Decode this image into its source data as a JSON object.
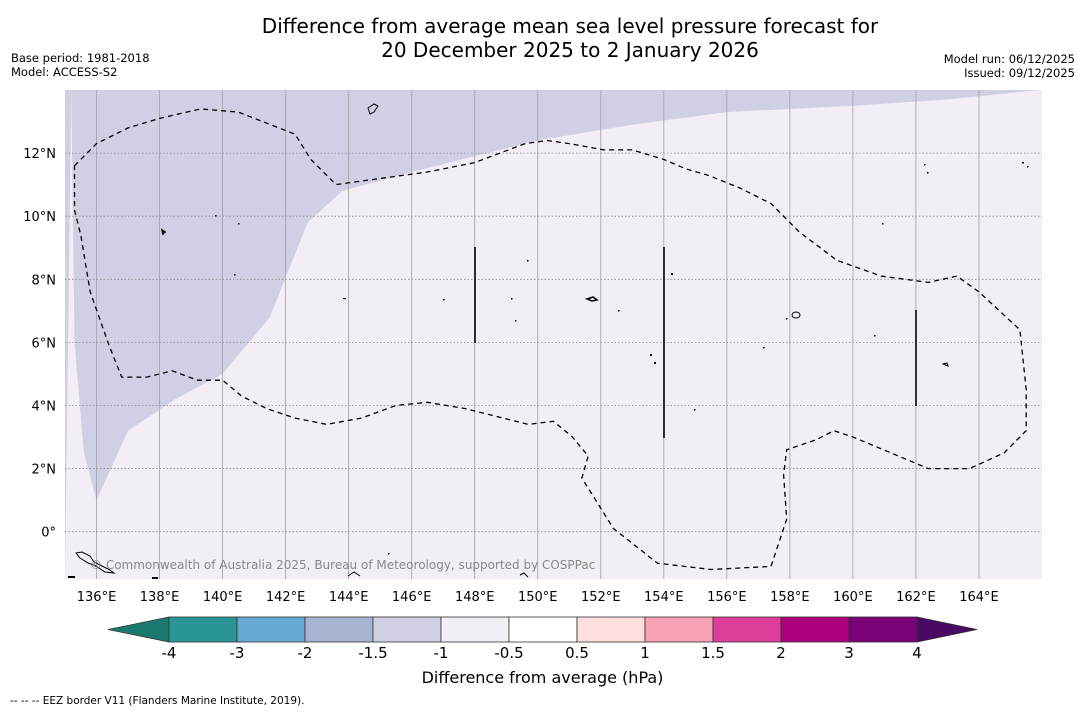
{
  "title": {
    "line1": "Difference from average mean sea level pressure forecast for",
    "line2": "20 December 2025 to 2 January 2026"
  },
  "meta": {
    "base_period": "Base period: 1981-2018",
    "model": "Model: ACCESS-S2",
    "model_run": "Model run: 06/12/2025",
    "issued": "Issued: 09/12/2025"
  },
  "map": {
    "lon_range": [
      135,
      166
    ],
    "lat_range": [
      -1.5,
      14
    ],
    "lon_ticks": [
      {
        "value": 136,
        "label": "136°E"
      },
      {
        "value": 138,
        "label": "138°E"
      },
      {
        "value": 140,
        "label": "140°E"
      },
      {
        "value": 142,
        "label": "142°E"
      },
      {
        "value": 144,
        "label": "144°E"
      },
      {
        "value": 146,
        "label": "146°E"
      },
      {
        "value": 148,
        "label": "148°E"
      },
      {
        "value": 150,
        "label": "150°E"
      },
      {
        "value": 152,
        "label": "152°E"
      },
      {
        "value": 154,
        "label": "154°E"
      },
      {
        "value": 156,
        "label": "156°E"
      },
      {
        "value": 158,
        "label": "158°E"
      },
      {
        "value": 160,
        "label": "160°E"
      },
      {
        "value": 162,
        "label": "162°E"
      },
      {
        "value": 164,
        "label": "164°E"
      }
    ],
    "lat_ticks": [
      {
        "value": 0,
        "label": "0°"
      },
      {
        "value": 2,
        "label": "2°N"
      },
      {
        "value": 4,
        "label": "4°N"
      },
      {
        "value": 6,
        "label": "6°N"
      },
      {
        "value": 8,
        "label": "8°N"
      },
      {
        "value": 10,
        "label": "10°N"
      },
      {
        "value": 12,
        "label": "12°N"
      }
    ],
    "fill_colors": {
      "neg_1_5_to_neg_1": "#d0d0e4",
      "neg_1_to_neg_0_5": "#f3edf6"
    },
    "boundary_minus1": [
      [
        135.2,
        14
      ],
      [
        135.3,
        6
      ],
      [
        135.6,
        2.5
      ],
      [
        136,
        1
      ],
      [
        137,
        3.2
      ],
      [
        138.5,
        4.2
      ],
      [
        140,
        5
      ],
      [
        141.5,
        6.8
      ],
      [
        142.7,
        9.8
      ],
      [
        143.8,
        10.8
      ],
      [
        146,
        11.4
      ],
      [
        150,
        12.4
      ],
      [
        153,
        12.9
      ],
      [
        156,
        13.3
      ],
      [
        160,
        13.5
      ],
      [
        163,
        13.7
      ],
      [
        165.9,
        14
      ]
    ],
    "eez_border": [
      [
        135.3,
        11.6
      ],
      [
        136,
        12.3
      ],
      [
        137,
        12.8
      ],
      [
        138,
        13.1
      ],
      [
        139.3,
        13.4
      ],
      [
        140.5,
        13.3
      ],
      [
        142.3,
        12.6
      ],
      [
        142.8,
        11.8
      ],
      [
        143.6,
        11.0
      ],
      [
        144.3,
        11.1
      ],
      [
        146.5,
        11.4
      ],
      [
        148.0,
        11.7
      ],
      [
        148.8,
        12.0
      ],
      [
        149.6,
        12.3
      ],
      [
        150.3,
        12.4
      ],
      [
        151,
        12.3
      ],
      [
        152.1,
        12.1
      ],
      [
        153,
        12.1
      ],
      [
        154,
        11.8
      ],
      [
        154.7,
        11.5
      ],
      [
        155.4,
        11.3
      ],
      [
        156.4,
        10.9
      ],
      [
        157.4,
        10.4
      ],
      [
        158.3,
        9.5
      ],
      [
        159.5,
        8.6
      ],
      [
        160.9,
        8.1
      ],
      [
        162.4,
        7.9
      ],
      [
        163.3,
        8.1
      ],
      [
        164,
        7.6
      ],
      [
        165.3,
        6.4
      ],
      [
        165.5,
        4.5
      ],
      [
        165.5,
        3.2
      ],
      [
        164.8,
        2.5
      ],
      [
        163.7,
        2.0
      ],
      [
        162.4,
        2.0
      ],
      [
        161.2,
        2.5
      ],
      [
        160,
        3.0
      ],
      [
        159.4,
        3.2
      ],
      [
        158.8,
        2.9
      ],
      [
        157.9,
        2.6
      ],
      [
        157.8,
        1.8
      ],
      [
        157.9,
        0.4
      ],
      [
        157.4,
        -1.1
      ],
      [
        155.5,
        -1.2
      ],
      [
        153.8,
        -1.0
      ],
      [
        152.4,
        0.1
      ],
      [
        151.4,
        1.7
      ],
      [
        151.6,
        2.4
      ],
      [
        151.1,
        3.0
      ],
      [
        150.5,
        3.5
      ],
      [
        149.7,
        3.4
      ],
      [
        148.9,
        3.6
      ],
      [
        147.7,
        3.9
      ],
      [
        146.5,
        4.1
      ],
      [
        145.5,
        4.0
      ],
      [
        144.4,
        3.6
      ],
      [
        143.3,
        3.4
      ],
      [
        142.3,
        3.6
      ],
      [
        141.4,
        3.9
      ],
      [
        140.6,
        4.3
      ],
      [
        140,
        4.8
      ],
      [
        139.2,
        4.8
      ],
      [
        138.4,
        5.1
      ],
      [
        137.6,
        4.9
      ],
      [
        136.8,
        4.9
      ],
      [
        136.4,
        5.9
      ],
      [
        135.8,
        7.6
      ],
      [
        135.5,
        9.4
      ],
      [
        135.3,
        10.2
      ],
      [
        135.3,
        11.6
      ]
    ],
    "copyright": "© Commonwealth of Australia 2025, Bureau of Meteorology, supported by COSPPac"
  },
  "colorbar": {
    "low_extend_color": "#1a7a6e",
    "high_extend_color": "#4a0a63",
    "segments": [
      {
        "color": "#2a9595"
      },
      {
        "color": "#67a9d1"
      },
      {
        "color": "#a8b4d2"
      },
      {
        "color": "#d0d0e4"
      },
      {
        "color": "#f3edf6"
      },
      {
        "color": "#ffffff"
      },
      {
        "color": "#fde0dd"
      },
      {
        "color": "#f8a0b5"
      },
      {
        "color": "#dc3e9a"
      },
      {
        "color": "#ad007e"
      },
      {
        "color": "#7a0177"
      }
    ],
    "tick_labels": [
      "-4",
      "-3",
      "-2",
      "-1.5",
      "-1",
      "-0.5",
      "0.5",
      "1",
      "1.5",
      "2",
      "3",
      "4"
    ],
    "label": "Difference from average (hPa)"
  },
  "footnote": "--  --  -- EEZ border V11 (Flanders Marine Institute, 2019)."
}
